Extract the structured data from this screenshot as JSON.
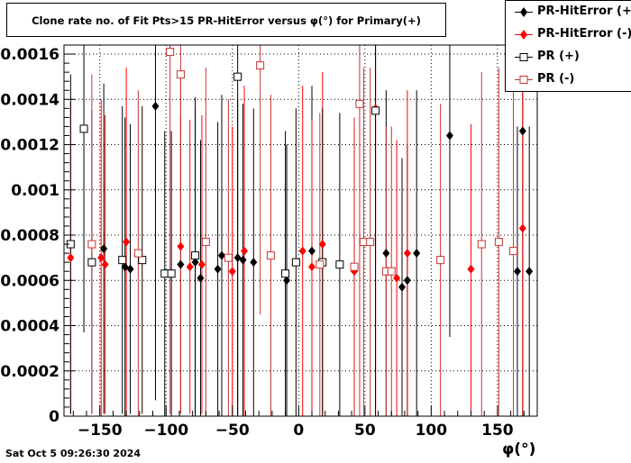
{
  "title": "Clone rate no. of Fit Pts>15 PR-HitError versus φ(°) for Primary(+)",
  "footer": {
    "timestamp": "Sat Oct  5 09:26:30 2024"
  },
  "colors": {
    "black": "#000000",
    "red": "#ff0000",
    "open_red": "#c83232"
  },
  "chart_data": {
    "type": "scatter",
    "title": "Clone rate no. of Fit Pts>15 PR-HitError versus φ(°) for Primary(+)",
    "xlabel": "φ(°)",
    "ylabel": "",
    "xlim": [
      -177,
      180
    ],
    "ylim": [
      0,
      0.00164
    ],
    "xticks": [
      {
        "value": -150,
        "label": "−150"
      },
      {
        "value": -100,
        "label": "−100"
      },
      {
        "value": -50,
        "label": "−50"
      },
      {
        "value": 0,
        "label": "0"
      },
      {
        "value": 50,
        "label": "50"
      },
      {
        "value": 100,
        "label": "100"
      },
      {
        "value": 150,
        "label": "150"
      }
    ],
    "yticks": [
      {
        "value": 0,
        "label": "0"
      },
      {
        "value": 0.0002,
        "label": "0.0002"
      },
      {
        "value": 0.0004,
        "label": "0.0004"
      },
      {
        "value": 0.0006,
        "label": "0.0006"
      },
      {
        "value": 0.0008,
        "label": "0.0008"
      },
      {
        "value": 0.001,
        "label": "0.001"
      },
      {
        "value": 0.0012,
        "label": "0.0012"
      },
      {
        "value": 0.0014,
        "label": "0.0014"
      },
      {
        "value": 0.0016,
        "label": "0.0016"
      }
    ],
    "grid": true,
    "legend": "top-right",
    "series": [
      {
        "name": "PR-HitError (+)",
        "marker": "diamond",
        "color": "#000000",
        "filled": true,
        "points": [
          {
            "x": -147,
            "y": 0.00074,
            "err": 0.00073
          },
          {
            "x": -131,
            "y": 0.00066,
            "err": 0.00066
          },
          {
            "x": -127,
            "y": 0.00065,
            "err": 0.00064
          },
          {
            "x": -108,
            "y": 0.00137,
            "err": 0.0013
          },
          {
            "x": -89,
            "y": 0.00067,
            "err": 0.00066
          },
          {
            "x": -78,
            "y": 0.00068,
            "err": 0.00068
          },
          {
            "x": -74,
            "y": 0.00061,
            "err": 0.00061
          },
          {
            "x": -61,
            "y": 0.00065,
            "err": 0.00065
          },
          {
            "x": -58,
            "y": 0.00071,
            "err": 0.00071
          },
          {
            "x": -46,
            "y": 0.0007,
            "err": 0.0007
          },
          {
            "x": -42,
            "y": 0.00069,
            "err": 0.00069
          },
          {
            "x": -34,
            "y": 0.00068,
            "err": 0.00068
          },
          {
            "x": -9,
            "y": 0.0006,
            "err": 0.0006
          },
          {
            "x": 10,
            "y": 0.00073,
            "err": 0.00073
          },
          {
            "x": 66,
            "y": 0.00072,
            "err": 0.00072
          },
          {
            "x": 78,
            "y": 0.00057,
            "err": 0.00057
          },
          {
            "x": 82,
            "y": 0.0006,
            "err": 0.0006
          },
          {
            "x": 89,
            "y": 0.00072,
            "err": 0.00072
          },
          {
            "x": 114,
            "y": 0.00124,
            "err": 0.00089
          },
          {
            "x": 165,
            "y": 0.00064,
            "err": 0.00064
          },
          {
            "x": 169,
            "y": 0.00126,
            "err": 0.00126
          },
          {
            "x": 174,
            "y": 0.00064,
            "err": 0.00064
          }
        ]
      },
      {
        "name": "PR-HitError (-)",
        "marker": "diamond",
        "color": "#ff0000",
        "filled": true,
        "points": [
          {
            "x": -172,
            "y": 0.0007,
            "err": 0.00069
          },
          {
            "x": -149,
            "y": 0.0007,
            "err": 0.0007
          },
          {
            "x": -146,
            "y": 0.00067,
            "err": 0.00066
          },
          {
            "x": -130,
            "y": 0.00077,
            "err": 0.00077
          },
          {
            "x": -89,
            "y": 0.00075,
            "err": 0.00074
          },
          {
            "x": -82,
            "y": 0.00066,
            "err": 0.00065
          },
          {
            "x": -73,
            "y": 0.00067,
            "err": 0.00066
          },
          {
            "x": -50,
            "y": 0.00064,
            "err": 0.00064
          },
          {
            "x": -41,
            "y": 0.00073,
            "err": 0.00073
          },
          {
            "x": 3,
            "y": 0.00073,
            "err": 0.00073
          },
          {
            "x": 10,
            "y": 0.00066,
            "err": 0.00065
          },
          {
            "x": 18,
            "y": 0.00076,
            "err": 0.00076
          },
          {
            "x": 42,
            "y": 0.00064,
            "err": 0.00064
          },
          {
            "x": 58,
            "y": 0.00136,
            "err": 0.00136
          },
          {
            "x": 74,
            "y": 0.00061,
            "err": 0.00061
          },
          {
            "x": 82,
            "y": 0.00072,
            "err": 0.00072
          },
          {
            "x": 130,
            "y": 0.00065,
            "err": 0.00064
          },
          {
            "x": 169,
            "y": 0.00083,
            "err": 0.00082
          }
        ]
      },
      {
        "name": "PR (+)",
        "marker": "square",
        "color": "#000000",
        "filled": false,
        "points": [
          {
            "x": -172,
            "y": 0.00076,
            "err": 0.00075
          },
          {
            "x": -162,
            "y": 0.00127,
            "err": 0.0009
          },
          {
            "x": -156,
            "y": 0.00068,
            "err": 0.00067
          },
          {
            "x": -133,
            "y": 0.00069,
            "err": 0.00068
          },
          {
            "x": -118,
            "y": 0.00069,
            "err": 0.00068
          },
          {
            "x": -101,
            "y": 0.00063,
            "err": 0.00063
          },
          {
            "x": -96,
            "y": 0.00063,
            "err": 0.00063
          },
          {
            "x": -78,
            "y": 0.00071,
            "err": 0.0007
          },
          {
            "x": -46,
            "y": 0.0015,
            "err": 0.0015
          },
          {
            "x": -10,
            "y": 0.00063,
            "err": 0.00063
          },
          {
            "x": -2,
            "y": 0.00068,
            "err": 0.00068
          },
          {
            "x": 18,
            "y": 0.00068,
            "err": 0.00068
          },
          {
            "x": 31,
            "y": 0.00067,
            "err": 0.00067
          },
          {
            "x": 58,
            "y": 0.00135,
            "err": 0.00135
          }
        ]
      },
      {
        "name": "PR (-)",
        "marker": "square",
        "color": "#c83232",
        "filled": false,
        "points": [
          {
            "x": -156,
            "y": 0.00076,
            "err": 0.00075
          },
          {
            "x": -121,
            "y": 0.00072,
            "err": 0.00072
          },
          {
            "x": -97,
            "y": 0.00161,
            "err": 0.0016
          },
          {
            "x": -89,
            "y": 0.00151,
            "err": 0.0015
          },
          {
            "x": -70,
            "y": 0.00077,
            "err": 0.00077
          },
          {
            "x": -53,
            "y": 0.0007,
            "err": 0.0007
          },
          {
            "x": -29,
            "y": 0.00155,
            "err": 0.0011
          },
          {
            "x": -21,
            "y": 0.00071,
            "err": 0.00071
          },
          {
            "x": 16,
            "y": 0.00067,
            "err": 0.00067
          },
          {
            "x": 42,
            "y": 0.00066,
            "err": 0.00066
          },
          {
            "x": 46,
            "y": 0.00138,
            "err": 0.00138
          },
          {
            "x": 49,
            "y": 0.00077,
            "err": 0.00077
          },
          {
            "x": 54,
            "y": 0.00077,
            "err": 0.00077
          },
          {
            "x": 66,
            "y": 0.00064,
            "err": 0.00064
          },
          {
            "x": 70,
            "y": 0.00064,
            "err": 0.00064
          },
          {
            "x": 107,
            "y": 0.00069,
            "err": 0.00069
          },
          {
            "x": 138,
            "y": 0.00076,
            "err": 0.00076
          },
          {
            "x": 151,
            "y": 0.00077,
            "err": 0.00077
          },
          {
            "x": 162,
            "y": 0.00073,
            "err": 0.00073
          }
        ]
      }
    ]
  }
}
